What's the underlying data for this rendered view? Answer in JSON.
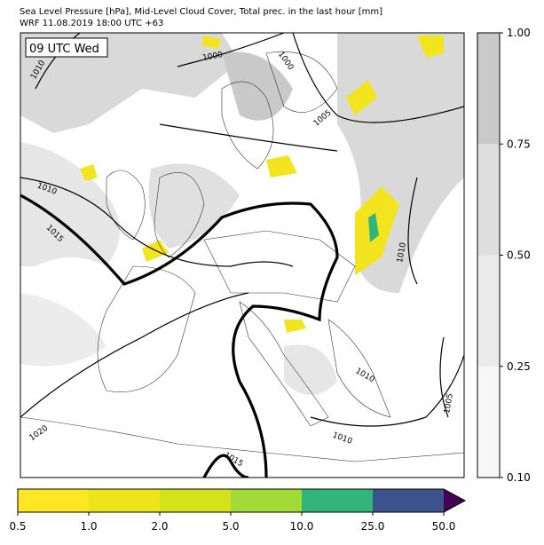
{
  "header": {
    "title_lines": [
      "Sea Level Pressure [hPa], Mid-Level Cloud Cover, Total prec. in the last hour [mm]",
      "WRF 11.08.2019 18:00 UTC +63"
    ]
  },
  "map": {
    "time_label": "09 UTC Wed",
    "contour_labels": [
      "1010",
      "1000",
      "1000",
      "1005",
      "1010",
      "1015",
      "1010",
      "1020",
      "1010",
      "1015",
      "1010",
      "1005"
    ]
  },
  "cloud_colorbar": {
    "labels": [
      "0.10",
      "0.25",
      "0.50",
      "0.75",
      "1.00"
    ],
    "colors": [
      "#f7f7f7",
      "#ebebeb",
      "#dedede",
      "#c9c9c9"
    ]
  },
  "precip_colorbar": {
    "labels": [
      "0.5",
      "1.0",
      "2.0",
      "5.0",
      "10.0",
      "25.0",
      "50.0"
    ],
    "colors": [
      "#fde725",
      "#ece51b",
      "#d3e21b",
      "#a2da37",
      "#31b57b",
      "#3b528b"
    ],
    "extend_color": "#440154"
  }
}
